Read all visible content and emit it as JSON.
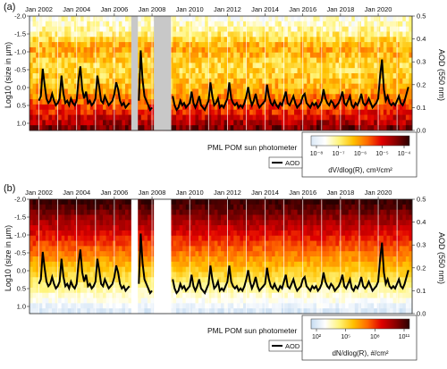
{
  "chart_data": [
    {
      "type": "heatmap",
      "panel_label": "(a)",
      "x_ticks": [
        "Jan 2002",
        "Jan 2004",
        "Jan 2006",
        "Jan 2008",
        "Jan 2010",
        "Jan 2012",
        "Jan 2014",
        "Jan 2016",
        "Jan 2018",
        "Jan 2020"
      ],
      "x_range": [
        2001.5,
        2021.8
      ],
      "ylabel_left": "Log10 (size in µm)",
      "ylabel_right": "AOD (550 nm)",
      "y_left_range": [
        -2.0,
        1.2
      ],
      "y_left_ticks": [
        "-2.0",
        "-1.5",
        "-1.0",
        "-0.5",
        "0.0",
        "0.5",
        "1.0"
      ],
      "y_right_range": [
        0.0,
        0.5
      ],
      "y_right_ticks": [
        "0.5",
        "0.4",
        "0.3",
        "0.2",
        "0.1",
        "0.0"
      ],
      "data_gaps": [
        [
          2006.9,
          2007.25
        ],
        [
          2008.1,
          2009.0
        ]
      ],
      "colorbar": {
        "label": "dV/dlog(R), cm³/cm²",
        "ticks": [
          "10⁻⁸",
          "10⁻⁷",
          "10⁻⁶",
          "10⁻⁵",
          "10⁻⁴"
        ],
        "colors": [
          "#dbe9f7",
          "#ffffff",
          "#fff47a",
          "#ffc000",
          "#ff6a00",
          "#e00000",
          "#8b0000",
          "#2a0000"
        ]
      },
      "legend": "AOD",
      "source_label": "PML POM sun photometer"
    },
    {
      "type": "heatmap",
      "panel_label": "(b)",
      "x_ticks": [
        "Jan 2002",
        "Jan 2004",
        "Jan 2006",
        "Jan 2008",
        "Jan 2010",
        "Jan 2012",
        "Jan 2014",
        "Jan 2016",
        "Jan 2018",
        "Jan 2020"
      ],
      "x_range": [
        2001.5,
        2021.8
      ],
      "ylabel_left": "Log10 (size in µm)",
      "ylabel_right": "AOD (550 nm)",
      "y_left_range": [
        -2.0,
        1.2
      ],
      "y_left_ticks": [
        "-2.0",
        "-1.5",
        "-1.0",
        "-0.5",
        "0.0",
        "0.5",
        "1.0"
      ],
      "y_right_range": [
        0.0,
        0.5
      ],
      "y_right_ticks": [
        "0.5",
        "0.4",
        "0.3",
        "0.2",
        "0.1",
        "0.0"
      ],
      "data_gaps": [
        [
          2006.9,
          2007.25
        ],
        [
          2008.1,
          2009.0
        ]
      ],
      "colorbar": {
        "label": "dN/dlog(R), #/cm²",
        "ticks": [
          "10²",
          "10⁵",
          "10⁸",
          "10¹¹"
        ],
        "colors": [
          "#c6dcf2",
          "#ffffff",
          "#fff47a",
          "#ffc000",
          "#ff6a00",
          "#e00000",
          "#8b0000",
          "#2a0000"
        ]
      },
      "legend": "AOD",
      "source_label": "PML POM sun photometer"
    }
  ],
  "aod_series": {
    "x": [
      2002.0,
      2002.1,
      2002.2,
      2002.3,
      2002.4,
      2002.5,
      2002.6,
      2002.7,
      2002.8,
      2002.9,
      2003.0,
      2003.1,
      2003.2,
      2003.3,
      2003.4,
      2003.5,
      2003.6,
      2003.7,
      2003.8,
      2003.9,
      2004.0,
      2004.1,
      2004.2,
      2004.3,
      2004.4,
      2004.5,
      2004.6,
      2004.7,
      2004.8,
      2004.9,
      2005.0,
      2005.1,
      2005.2,
      2005.3,
      2005.4,
      2005.5,
      2005.6,
      2005.7,
      2005.8,
      2005.9,
      2006.0,
      2006.1,
      2006.2,
      2006.3,
      2006.4,
      2006.5,
      2006.6,
      2006.7,
      2006.8,
      2007.3,
      2007.4,
      2007.5,
      2007.6,
      2007.7,
      2007.8,
      2007.9,
      2008.0,
      2009.1,
      2009.2,
      2009.3,
      2009.4,
      2009.5,
      2009.6,
      2009.7,
      2009.8,
      2009.9,
      2010.0,
      2010.1,
      2010.2,
      2010.3,
      2010.4,
      2010.5,
      2010.6,
      2010.7,
      2010.8,
      2010.9,
      2011.0,
      2011.1,
      2011.2,
      2011.3,
      2011.4,
      2011.5,
      2011.6,
      2011.7,
      2011.8,
      2011.9,
      2012.0,
      2012.1,
      2012.2,
      2012.3,
      2012.4,
      2012.5,
      2012.6,
      2012.7,
      2012.8,
      2012.9,
      2013.0,
      2013.1,
      2013.2,
      2013.3,
      2013.4,
      2013.5,
      2013.6,
      2013.7,
      2013.8,
      2013.9,
      2014.0,
      2014.1,
      2014.2,
      2014.3,
      2014.4,
      2014.5,
      2014.6,
      2014.7,
      2014.8,
      2014.9,
      2015.0,
      2015.1,
      2015.2,
      2015.3,
      2015.4,
      2015.5,
      2015.6,
      2015.7,
      2015.8,
      2015.9,
      2016.0,
      2016.1,
      2016.2,
      2016.3,
      2016.4,
      2016.5,
      2016.6,
      2016.7,
      2016.8,
      2016.9,
      2017.0,
      2017.1,
      2017.2,
      2017.3,
      2017.4,
      2017.5,
      2017.6,
      2017.7,
      2017.8,
      2017.9,
      2018.0,
      2018.1,
      2018.2,
      2018.3,
      2018.4,
      2018.5,
      2018.6,
      2018.7,
      2018.8,
      2018.9,
      2019.0,
      2019.1,
      2019.2,
      2019.3,
      2019.4,
      2019.5,
      2019.6,
      2019.7,
      2019.8,
      2019.9,
      2020.0,
      2020.1,
      2020.2,
      2020.3,
      2020.4,
      2020.5,
      2020.6,
      2020.7,
      2020.8,
      2020.9,
      2021.0,
      2021.1,
      2021.2,
      2021.3,
      2021.4,
      2021.5,
      2021.6
    ],
    "y": [
      0.13,
      0.15,
      0.27,
      0.2,
      0.14,
      0.12,
      0.13,
      0.16,
      0.13,
      0.11,
      0.12,
      0.14,
      0.24,
      0.16,
      0.12,
      0.13,
      0.11,
      0.14,
      0.12,
      0.11,
      0.13,
      0.22,
      0.28,
      0.18,
      0.14,
      0.17,
      0.12,
      0.13,
      0.11,
      0.12,
      0.14,
      0.24,
      0.19,
      0.13,
      0.12,
      0.15,
      0.13,
      0.11,
      0.12,
      0.13,
      0.16,
      0.21,
      0.18,
      0.13,
      0.11,
      0.12,
      0.1,
      0.11,
      0.12,
      0.13,
      0.35,
      0.22,
      0.15,
      0.13,
      0.11,
      0.09,
      0.1,
      0.15,
      0.11,
      0.09,
      0.1,
      0.13,
      0.11,
      0.12,
      0.1,
      0.11,
      0.12,
      0.17,
      0.12,
      0.1,
      0.12,
      0.15,
      0.11,
      0.1,
      0.09,
      0.11,
      0.13,
      0.21,
      0.15,
      0.11,
      0.12,
      0.14,
      0.1,
      0.11,
      0.1,
      0.12,
      0.14,
      0.21,
      0.14,
      0.12,
      0.11,
      0.12,
      0.1,
      0.11,
      0.1,
      0.12,
      0.15,
      0.19,
      0.14,
      0.11,
      0.13,
      0.16,
      0.12,
      0.1,
      0.11,
      0.12,
      0.13,
      0.2,
      0.15,
      0.12,
      0.11,
      0.13,
      0.11,
      0.1,
      0.12,
      0.11,
      0.14,
      0.17,
      0.12,
      0.11,
      0.13,
      0.15,
      0.12,
      0.1,
      0.11,
      0.12,
      0.15,
      0.16,
      0.12,
      0.11,
      0.1,
      0.12,
      0.11,
      0.12,
      0.1,
      0.11,
      0.13,
      0.18,
      0.14,
      0.12,
      0.11,
      0.13,
      0.12,
      0.1,
      0.11,
      0.12,
      0.14,
      0.17,
      0.12,
      0.11,
      0.13,
      0.15,
      0.11,
      0.1,
      0.12,
      0.11,
      0.13,
      0.16,
      0.12,
      0.11,
      0.12,
      0.14,
      0.12,
      0.1,
      0.11,
      0.12,
      0.14,
      0.24,
      0.31,
      0.18,
      0.13,
      0.15,
      0.12,
      0.11,
      0.12,
      0.11,
      0.13,
      0.15,
      0.12,
      0.11,
      0.13,
      0.16,
      0.19
    ]
  }
}
